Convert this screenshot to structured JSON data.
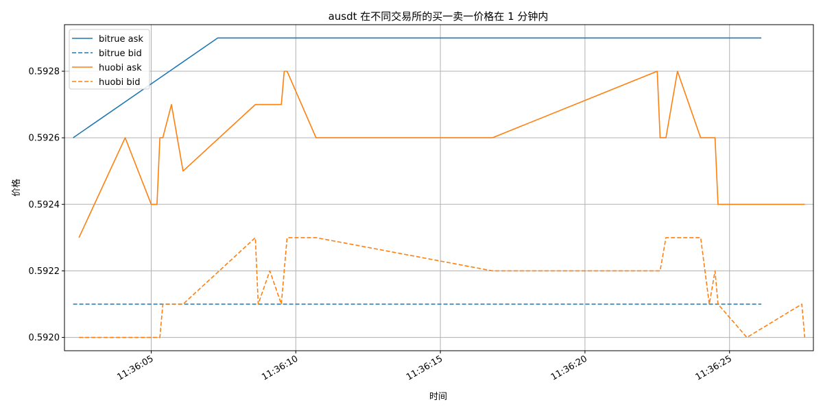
{
  "chart_data": {
    "type": "line",
    "title": "ausdt 在不同交易所的买一卖一价格在 1 分钟内",
    "xlabel": "时间",
    "ylabel": "价格",
    "x_range": [
      "11:36:02.0",
      "11:36:27.9"
    ],
    "ylim": [
      0.59196,
      0.59294
    ],
    "x_ticks": [
      "11:36:05",
      "11:36:10",
      "11:36:15",
      "11:36:20",
      "11:36:25"
    ],
    "y_ticks": [
      "0.5920",
      "0.5922",
      "0.5924",
      "0.5926",
      "0.5928"
    ],
    "grid": true,
    "legend_position": "top-left",
    "series": [
      {
        "name": "bitrue ask",
        "color": "#1f77b4",
        "dash": "solid",
        "points": [
          [
            "11:36:02.3",
            0.5926
          ],
          [
            "11:36:07.3",
            0.5929
          ],
          [
            "11:36:26.1",
            0.5929
          ]
        ]
      },
      {
        "name": "bitrue bid",
        "color": "#1f77b4",
        "dash": "dashed",
        "points": [
          [
            "11:36:02.3",
            0.5921
          ],
          [
            "11:36:26.1",
            0.5921
          ]
        ]
      },
      {
        "name": "huobi ask",
        "color": "#ff7f0e",
        "dash": "solid",
        "points": [
          [
            "11:36:02.5",
            0.5923
          ],
          [
            "11:36:04.1",
            0.5926
          ],
          [
            "11:36:05.0",
            0.5924
          ],
          [
            "11:36:05.2",
            0.5924
          ],
          [
            "11:36:05.3",
            0.5926
          ],
          [
            "11:36:05.4",
            0.5926
          ],
          [
            "11:36:05.7",
            0.5927
          ],
          [
            "11:36:06.1",
            0.5925
          ],
          [
            "11:36:08.6",
            0.5927
          ],
          [
            "11:36:09.5",
            0.5927
          ],
          [
            "11:36:09.6",
            0.5928
          ],
          [
            "11:36:09.7",
            0.5928
          ],
          [
            "11:36:10.7",
            0.5926
          ],
          [
            "11:36:16.8",
            0.5926
          ],
          [
            "11:36:22.5",
            0.5928
          ],
          [
            "11:36:22.6",
            0.5926
          ],
          [
            "11:36:22.8",
            0.5926
          ],
          [
            "11:36:23.2",
            0.5928
          ],
          [
            "11:36:24.0",
            0.5926
          ],
          [
            "11:36:24.5",
            0.5926
          ],
          [
            "11:36:24.6",
            0.5924
          ],
          [
            "11:36:27.6",
            0.5924
          ]
        ]
      },
      {
        "name": "huobi bid",
        "color": "#ff7f0e",
        "dash": "dashed",
        "points": [
          [
            "11:36:02.5",
            0.592
          ],
          [
            "11:36:05.3",
            0.592
          ],
          [
            "11:36:05.4",
            0.5921
          ],
          [
            "11:36:06.1",
            0.5921
          ],
          [
            "11:36:08.6",
            0.5923
          ],
          [
            "11:36:08.7",
            0.5921
          ],
          [
            "11:36:09.1",
            0.5922
          ],
          [
            "11:36:09.5",
            0.5921
          ],
          [
            "11:36:09.7",
            0.5923
          ],
          [
            "11:36:10.7",
            0.5923
          ],
          [
            "11:36:16.8",
            0.5922
          ],
          [
            "11:36:22.6",
            0.5922
          ],
          [
            "11:36:22.8",
            0.5923
          ],
          [
            "11:36:24.0",
            0.5923
          ],
          [
            "11:36:24.3",
            0.5921
          ],
          [
            "11:36:24.5",
            0.5922
          ],
          [
            "11:36:24.6",
            0.5921
          ],
          [
            "11:36:25.6",
            0.592
          ],
          [
            "11:36:27.5",
            0.5921
          ],
          [
            "11:36:27.6",
            0.592
          ]
        ]
      }
    ]
  }
}
